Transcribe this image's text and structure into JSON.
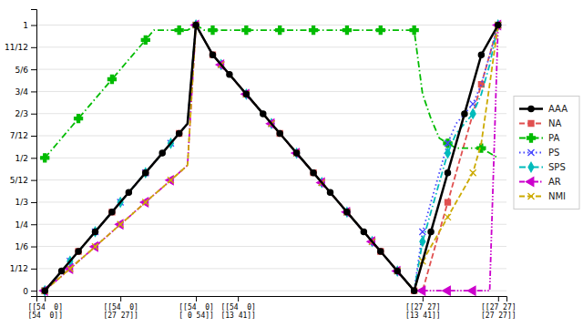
{
  "chart_data": {
    "type": "line",
    "categories": [
      "[[54  0]\n[54  0]]",
      null,
      null,
      null,
      null,
      null,
      null,
      null,
      null,
      "[[54  0]\n[27 27]]",
      null,
      null,
      null,
      null,
      null,
      null,
      null,
      null,
      "[[54  0]\n[ 0 54]]",
      null,
      null,
      null,
      null,
      "[[54  0]\n[13 41]]",
      null,
      null,
      null,
      null,
      null,
      null,
      null,
      null,
      null,
      null,
      null,
      null,
      null,
      null,
      null,
      null,
      null,
      null,
      null,
      null,
      null,
      "[[27 27]\n[13 41]]",
      null,
      null,
      null,
      null,
      null,
      null,
      null,
      null,
      "[[27 27]\n[27 27]]"
    ],
    "ylim": [
      -0.02,
      1.06
    ],
    "yticks": [
      0,
      {
        "value": 0.08333,
        "label": "1/12"
      },
      {
        "value": 0.16667,
        "label": "1/6"
      },
      {
        "value": 0.25,
        "label": "1/4"
      },
      {
        "value": 0.33333,
        "label": "1/3"
      },
      {
        "value": 0.41667,
        "label": "5/12"
      },
      {
        "value": 0.5,
        "label": "1/2"
      },
      {
        "value": 0.58333,
        "label": "7/12"
      },
      {
        "value": 0.66667,
        "label": "2/3"
      },
      {
        "value": 0.75,
        "label": "3/4"
      },
      {
        "value": 0.83333,
        "label": "5/6"
      },
      {
        "value": 0.91667,
        "label": "11/12"
      },
      1
    ],
    "grid": true,
    "legend": "right",
    "series": [
      {
        "name": "AAA",
        "color": "#000000",
        "marker": "circle",
        "line_style": "solid",
        "values": [
          0.0,
          0.037,
          0.074,
          0.111,
          0.148,
          0.185,
          0.222,
          0.259,
          0.296,
          0.333,
          0.37,
          0.407,
          0.444,
          0.481,
          0.518,
          0.555,
          0.592,
          0.629,
          1.0,
          0.944,
          0.888,
          0.851,
          0.814,
          0.777,
          0.74,
          0.703,
          0.666,
          0.629,
          0.592,
          0.555,
          0.518,
          0.481,
          0.444,
          0.407,
          0.37,
          0.333,
          0.296,
          0.259,
          0.222,
          0.185,
          0.148,
          0.111,
          0.074,
          0.037,
          0.0,
          0.111,
          0.222,
          0.333,
          0.444,
          0.555,
          0.666,
          0.777,
          0.888,
          0.944,
          1.0
        ]
      },
      {
        "name": "NA",
        "color": "#e05050",
        "marker": "square",
        "line_style": "dashed",
        "values": [
          0.0,
          0.037,
          0.074,
          0.111,
          0.148,
          0.185,
          0.222,
          0.259,
          0.296,
          0.333,
          0.37,
          0.407,
          0.444,
          0.481,
          0.518,
          0.555,
          0.592,
          0.629,
          1.0,
          0.944,
          0.888,
          0.851,
          0.814,
          0.777,
          0.74,
          0.703,
          0.666,
          0.629,
          0.592,
          0.555,
          0.518,
          0.481,
          0.444,
          0.407,
          0.37,
          0.333,
          0.296,
          0.259,
          0.222,
          0.185,
          0.148,
          0.111,
          0.074,
          0.037,
          0.0,
          0.0,
          0.111,
          0.222,
          0.333,
          0.444,
          0.555,
          0.666,
          0.777,
          0.888,
          1.0
        ]
      },
      {
        "name": "PA",
        "color": "#00bb00",
        "marker": "plus",
        "line_style": "dashdot",
        "values": [
          0.5,
          0.537,
          0.574,
          0.611,
          0.648,
          0.685,
          0.722,
          0.759,
          0.796,
          0.833,
          0.87,
          0.907,
          0.944,
          0.981,
          0.981,
          0.981,
          0.981,
          0.981,
          1.0,
          0.981,
          0.981,
          0.981,
          0.981,
          0.981,
          0.981,
          0.981,
          0.981,
          0.981,
          0.981,
          0.981,
          0.981,
          0.981,
          0.981,
          0.981,
          0.981,
          0.981,
          0.981,
          0.981,
          0.981,
          0.981,
          0.981,
          0.981,
          0.981,
          0.981,
          0.981,
          0.7407,
          0.648,
          0.574,
          0.555,
          0.537,
          0.537,
          0.537,
          0.537,
          0.518,
          0.5
        ]
      },
      {
        "name": "PS",
        "color": "#4444ff",
        "marker": "x",
        "line_style": "dotted",
        "values": [
          0.0,
          0.037,
          0.074,
          0.111,
          0.148,
          0.185,
          0.222,
          0.259,
          0.296,
          0.333,
          0.37,
          0.407,
          0.444,
          0.481,
          0.518,
          0.555,
          0.592,
          0.629,
          1.0,
          0.944,
          0.888,
          0.851,
          0.814,
          0.777,
          0.74,
          0.703,
          0.666,
          0.629,
          0.592,
          0.555,
          0.518,
          0.481,
          0.444,
          0.407,
          0.37,
          0.333,
          0.296,
          0.259,
          0.222,
          0.185,
          0.148,
          0.111,
          0.074,
          0.037,
          0.0,
          0.222,
          0.333,
          0.444,
          0.555,
          0.629,
          0.666,
          0.703,
          0.777,
          0.888,
          1.0
        ]
      },
      {
        "name": "SPS",
        "color": "#00bbbb",
        "marker": "diamond",
        "line_style": "dashdot",
        "values": [
          0.0,
          0.037,
          0.074,
          0.111,
          0.148,
          0.185,
          0.222,
          0.259,
          0.296,
          0.333,
          0.37,
          0.407,
          0.444,
          0.481,
          0.518,
          0.555,
          0.592,
          0.629,
          1.0,
          0.944,
          0.888,
          0.851,
          0.814,
          0.777,
          0.74,
          0.703,
          0.666,
          0.629,
          0.592,
          0.555,
          0.518,
          0.481,
          0.444,
          0.407,
          0.37,
          0.333,
          0.296,
          0.259,
          0.222,
          0.185,
          0.148,
          0.111,
          0.074,
          0.037,
          0.0,
          0.185,
          0.296,
          0.407,
          0.518,
          0.592,
          0.629,
          0.666,
          0.74,
          0.851,
          1.0
        ]
      },
      {
        "name": "AR",
        "color": "#cc00cc",
        "marker": "triangle-left",
        "line_style": "dashdotdotted",
        "values": [
          0.0,
          0.028,
          0.055,
          0.083,
          0.111,
          0.138,
          0.166,
          0.194,
          0.222,
          0.25,
          0.277,
          0.305,
          0.333,
          0.361,
          0.388,
          0.416,
          0.444,
          0.472,
          1.0,
          0.944,
          0.888,
          0.851,
          0.814,
          0.777,
          0.74,
          0.703,
          0.666,
          0.629,
          0.592,
          0.555,
          0.518,
          0.481,
          0.444,
          0.407,
          0.37,
          0.333,
          0.296,
          0.259,
          0.222,
          0.185,
          0.148,
          0.111,
          0.074,
          0.037,
          0.0,
          0.0,
          0.0,
          0.0,
          0.0,
          0.0,
          0.0,
          0.0,
          0.0,
          0.0,
          1.0
        ]
      },
      {
        "name": "NMI",
        "color": "#ccaa00",
        "marker": "x",
        "line_style": "dashed",
        "values": [
          0.0,
          0.028,
          0.055,
          0.083,
          0.111,
          0.138,
          0.166,
          0.194,
          0.222,
          0.25,
          0.277,
          0.305,
          0.333,
          0.361,
          0.388,
          0.416,
          0.444,
          0.472,
          1.0,
          0.944,
          0.888,
          0.851,
          0.814,
          0.777,
          0.74,
          0.703,
          0.666,
          0.629,
          0.592,
          0.555,
          0.518,
          0.481,
          0.444,
          0.407,
          0.37,
          0.333,
          0.296,
          0.259,
          0.222,
          0.185,
          0.148,
          0.111,
          0.074,
          0.037,
          0.0,
          0.111,
          0.166,
          0.222,
          0.277,
          0.333,
          0.388,
          0.444,
          0.555,
          0.777,
          1.0
        ]
      }
    ]
  }
}
